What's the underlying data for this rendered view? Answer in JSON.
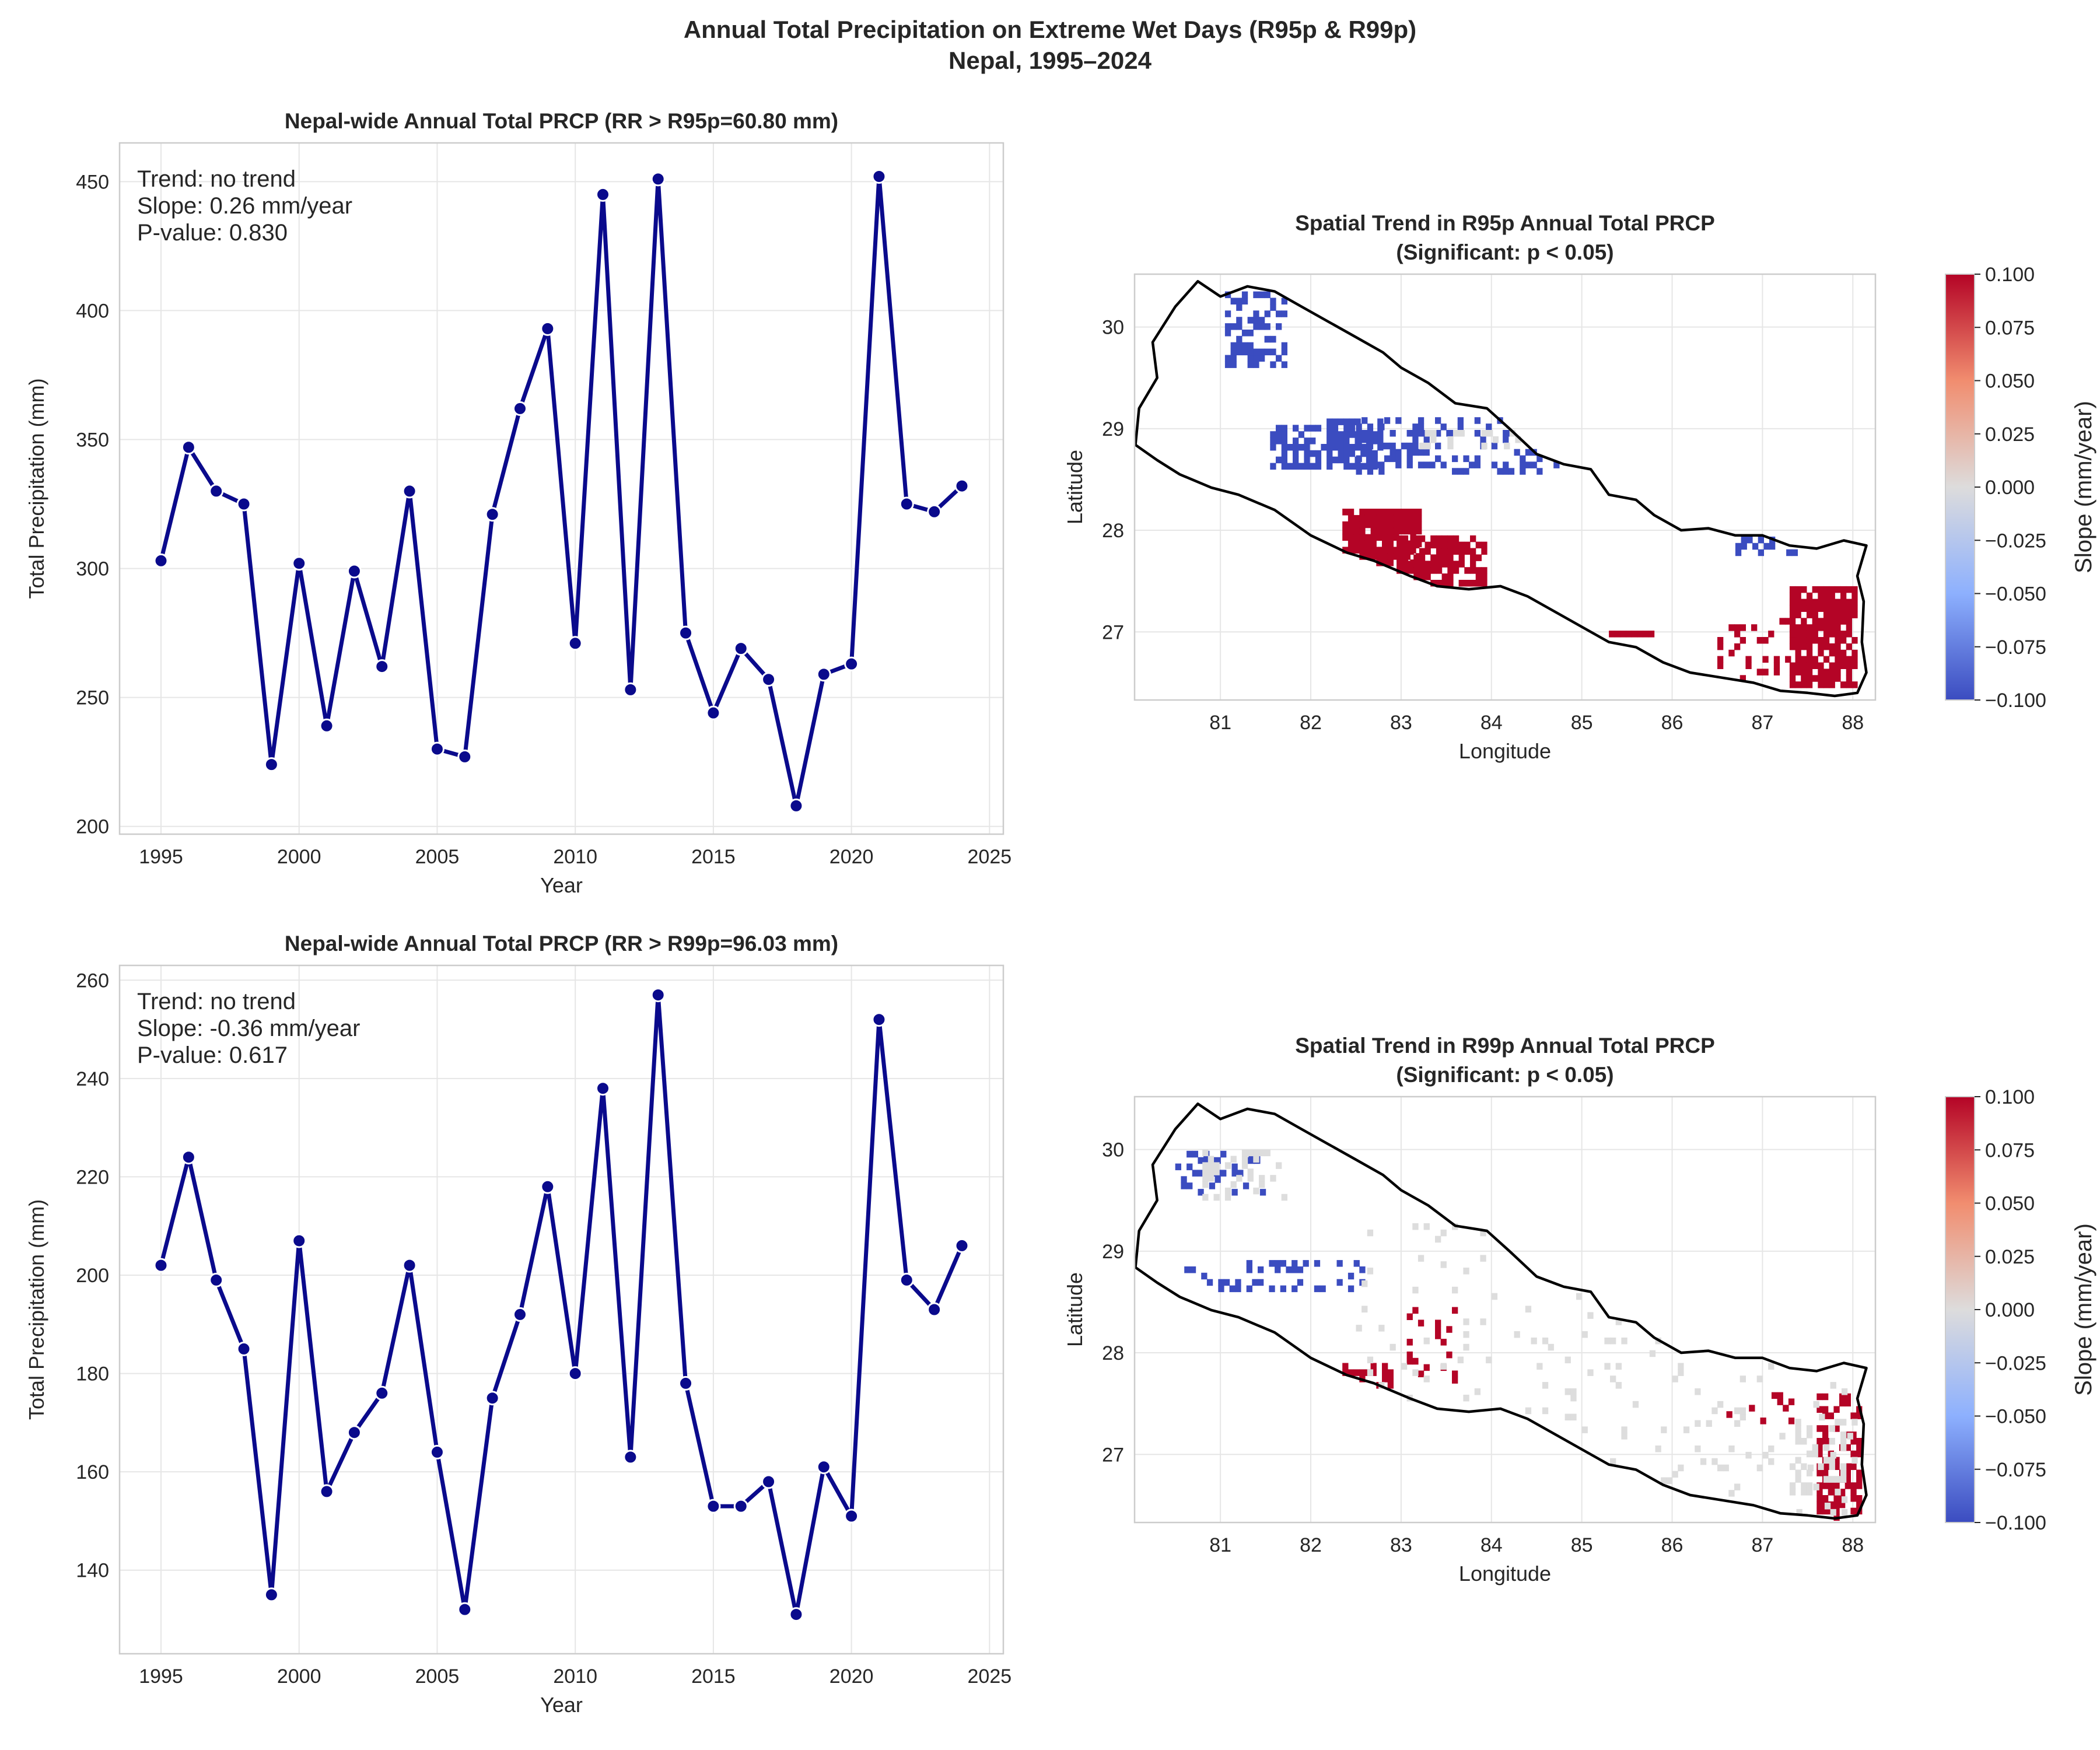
{
  "figure": {
    "title_line1": "Annual Total Precipitation on Extreme Wet Days (R95p & R99p)",
    "title_line2": "Nepal, 1995–2024"
  },
  "colors": {
    "line": "#0a0a8c",
    "grid": "#e6e6e6",
    "spine": "#cccccc",
    "border": "#000000",
    "positive": "#b40426",
    "negative": "#3b4cc0",
    "neutral": "#dddddd"
  },
  "chart_data": [
    {
      "type": "line",
      "title": "Nepal-wide Annual Total PRCP (RR > R95p=60.80 mm)",
      "xlabel": "Year",
      "ylabel": "Total Precipitation (mm)",
      "xlim": [
        1993.5,
        2025.5
      ],
      "ylim": [
        197,
        465
      ],
      "xticks": [
        1995,
        2000,
        2005,
        2010,
        2015,
        2020,
        2025
      ],
      "yticks": [
        200,
        250,
        300,
        350,
        400,
        450
      ],
      "grid": true,
      "annotation": [
        "Trend: no trend",
        "Slope: 0.26 mm/year",
        "P-value: 0.830"
      ],
      "x": [
        1995,
        1996,
        1997,
        1998,
        1999,
        2000,
        2001,
        2002,
        2003,
        2004,
        2005,
        2006,
        2007,
        2008,
        2009,
        2010,
        2011,
        2012,
        2013,
        2014,
        2015,
        2016,
        2017,
        2018,
        2019,
        2020,
        2021,
        2022,
        2023,
        2024
      ],
      "values": [
        303,
        347,
        330,
        325,
        224,
        302,
        239,
        299,
        262,
        330,
        230,
        227,
        321,
        362,
        393,
        271,
        445,
        253,
        451,
        275,
        244,
        269,
        257,
        208,
        259,
        263,
        452,
        325,
        322,
        332
      ]
    },
    {
      "type": "heatmap",
      "title_line1": "Spatial Trend in R95p Annual Total PRCP",
      "title_line2": "(Significant: p < 0.05)",
      "xlabel": "Longitude",
      "ylabel": "Latitude",
      "xlim": [
        80.05,
        88.25
      ],
      "ylim": [
        26.33,
        30.52
      ],
      "xticks": [
        81,
        82,
        83,
        84,
        85,
        86,
        87,
        88
      ],
      "yticks": [
        27,
        28,
        29,
        30
      ],
      "grid": true,
      "colorbar": {
        "label": "Slope (mm/year)",
        "vmin": -0.1,
        "vmax": 0.1,
        "colormap": "coolwarm",
        "ticks": [
          "0.100",
          "0.075",
          "0.050",
          "0.025",
          "0.000",
          "−0.025",
          "−0.050",
          "−0.075",
          "−0.100"
        ]
      },
      "clusters": [
        {
          "lon": [
            82.35,
            83.2
          ],
          "lat": [
            27.65,
            28.2
          ],
          "slope": 0.1,
          "density": 0.85
        },
        {
          "lon": [
            82.95,
            83.9
          ],
          "lat": [
            27.45,
            27.95
          ],
          "slope": 0.1,
          "density": 0.75
        },
        {
          "lon": [
            87.3,
            88.05
          ],
          "lat": [
            26.45,
            27.4
          ],
          "slope": 0.1,
          "density": 0.8
        },
        {
          "lon": [
            86.5,
            87.4
          ],
          "lat": [
            26.45,
            27.1
          ],
          "slope": 0.1,
          "density": 0.2
        },
        {
          "lon": [
            85.3,
            85.8
          ],
          "lat": [
            26.95,
            27.0
          ],
          "slope": 0.1,
          "density": 1.0
        },
        {
          "lon": [
            81.55,
            82.8
          ],
          "lat": [
            28.6,
            29.05
          ],
          "slope": -0.1,
          "density": 0.6
        },
        {
          "lon": [
            82.5,
            84.7
          ],
          "lat": [
            28.55,
            29.1
          ],
          "slope": -0.1,
          "density": 0.35
        },
        {
          "lon": [
            81.05,
            81.7
          ],
          "lat": [
            29.6,
            30.3
          ],
          "slope": -0.1,
          "density": 0.45
        },
        {
          "lon": [
            86.7,
            87.4
          ],
          "lat": [
            27.75,
            27.95
          ],
          "slope": -0.1,
          "density": 0.3
        },
        {
          "lon": [
            83.2,
            84.7
          ],
          "lat": [
            28.8,
            28.95
          ],
          "slope": 0.0,
          "density": 0.3
        }
      ]
    },
    {
      "type": "line",
      "title": "Nepal-wide Annual Total PRCP (RR > R99p=96.03 mm)",
      "xlabel": "Year",
      "ylabel": "Total Precipitation (mm)",
      "xlim": [
        1993.5,
        2025.5
      ],
      "ylim": [
        123,
        263
      ],
      "xticks": [
        1995,
        2000,
        2005,
        2010,
        2015,
        2020,
        2025
      ],
      "yticks": [
        140,
        160,
        180,
        200,
        220,
        240,
        260
      ],
      "grid": true,
      "annotation": [
        "Trend: no trend",
        "Slope: -0.36 mm/year",
        "P-value: 0.617"
      ],
      "x": [
        1995,
        1996,
        1997,
        1998,
        1999,
        2000,
        2001,
        2002,
        2003,
        2004,
        2005,
        2006,
        2007,
        2008,
        2009,
        2010,
        2011,
        2012,
        2013,
        2014,
        2015,
        2016,
        2017,
        2018,
        2019,
        2020,
        2021,
        2022,
        2023,
        2024
      ],
      "values": [
        202,
        224,
        199,
        185,
        135,
        207,
        156,
        168,
        176,
        202,
        164,
        132,
        175,
        192,
        218,
        180,
        238,
        163,
        257,
        178,
        153,
        153,
        158,
        131,
        161,
        151,
        252,
        199,
        193,
        206
      ]
    },
    {
      "type": "heatmap",
      "title_line1": "Spatial Trend in R99p Annual Total PRCP",
      "title_line2": "(Significant: p < 0.05)",
      "xlabel": "Longitude",
      "ylabel": "Latitude",
      "xlim": [
        80.05,
        88.25
      ],
      "ylim": [
        26.33,
        30.52
      ],
      "xticks": [
        81,
        82,
        83,
        84,
        85,
        86,
        87,
        88
      ],
      "yticks": [
        27,
        28,
        29,
        30
      ],
      "grid": true,
      "colorbar": {
        "label": "Slope (mm/year)",
        "vmin": -0.1,
        "vmax": 0.1,
        "colormap": "coolwarm",
        "ticks": [
          "0.100",
          "0.075",
          "0.050",
          "0.025",
          "0.000",
          "−0.025",
          "−0.050",
          "−0.075",
          "−0.100"
        ]
      },
      "clusters": [
        {
          "lon": [
            82.35,
            82.9
          ],
          "lat": [
            27.65,
            27.85
          ],
          "slope": 0.1,
          "density": 0.7
        },
        {
          "lon": [
            83.0,
            83.6
          ],
          "lat": [
            27.7,
            28.4
          ],
          "slope": 0.1,
          "density": 0.25
        },
        {
          "lon": [
            87.6,
            88.05
          ],
          "lat": [
            26.35,
            27.55
          ],
          "slope": 0.1,
          "density": 0.45
        },
        {
          "lon": [
            86.6,
            87.3
          ],
          "lat": [
            27.3,
            27.6
          ],
          "slope": 0.1,
          "density": 0.15
        },
        {
          "lon": [
            80.5,
            81.5
          ],
          "lat": [
            29.55,
            29.95
          ],
          "slope": -0.1,
          "density": 0.3
        },
        {
          "lon": [
            80.6,
            82.6
          ],
          "lat": [
            28.6,
            28.9
          ],
          "slope": -0.1,
          "density": 0.25
        },
        {
          "lon": [
            80.8,
            81.7
          ],
          "lat": [
            29.5,
            30.0
          ],
          "slope": 0.0,
          "density": 0.3
        },
        {
          "lon": [
            82.5,
            88.0
          ],
          "lat": [
            26.4,
            29.3
          ],
          "slope": 0.0,
          "density": 0.05
        },
        {
          "lon": [
            87.3,
            88.0
          ],
          "lat": [
            26.6,
            27.3
          ],
          "slope": 0.0,
          "density": 0.3
        }
      ]
    }
  ]
}
